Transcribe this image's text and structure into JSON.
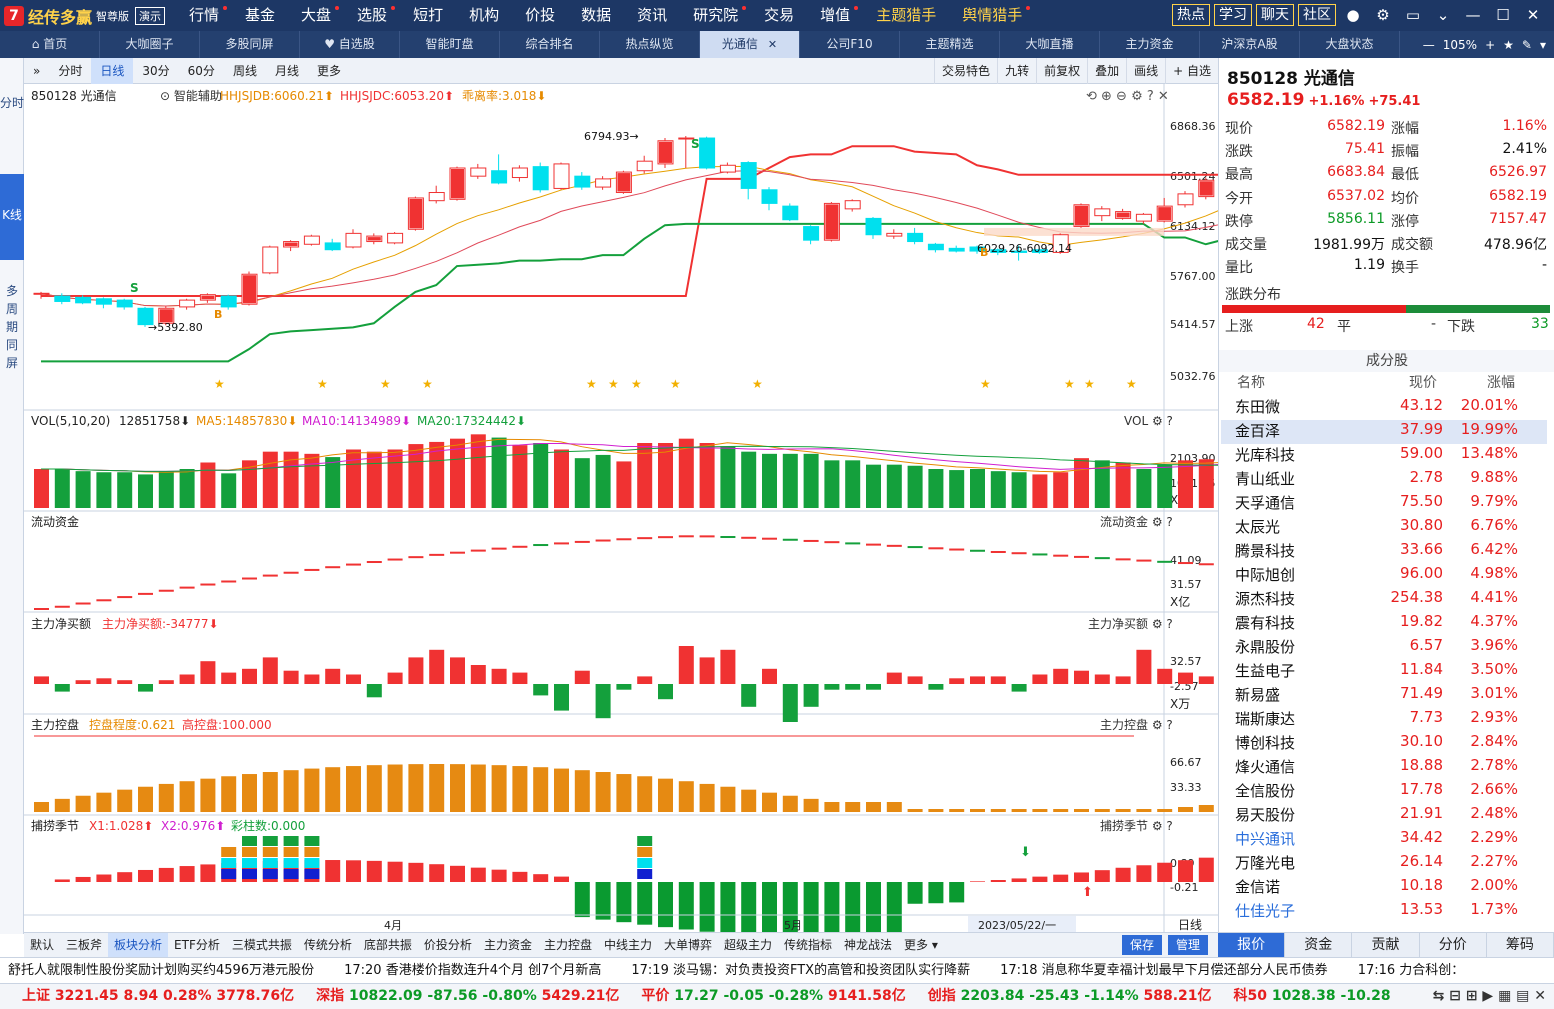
{
  "app": {
    "name": "经传多赢",
    "edition": "智尊版",
    "demo": "演示"
  },
  "main_menu": [
    {
      "label": "行情",
      "dot": true
    },
    {
      "label": "基金",
      "dot": false
    },
    {
      "label": "大盘",
      "dot": true
    },
    {
      "label": "选股",
      "dot": true
    },
    {
      "label": "短打",
      "dot": false
    },
    {
      "label": "机构",
      "dot": false
    },
    {
      "label": "价投",
      "dot": false
    },
    {
      "label": "数据",
      "dot": false
    },
    {
      "label": "资讯",
      "dot": false
    },
    {
      "label": "研究院",
      "dot": true
    },
    {
      "label": "交易",
      "dot": false
    },
    {
      "label": "增值",
      "dot": true
    },
    {
      "label": "主题猎手",
      "dot": false,
      "hot": true
    },
    {
      "label": "舆情猎手",
      "dot": true,
      "hot": true
    }
  ],
  "top_right": {
    "hot": "热点",
    "learn": "学习",
    "chat": "聊天",
    "community": "社区"
  },
  "tabs": [
    {
      "label": "首页",
      "icon": "home-icon"
    },
    {
      "label": "大咖圈子"
    },
    {
      "label": "多股同屏"
    },
    {
      "label": "自选股",
      "icon": "heart-icon"
    },
    {
      "label": "智能盯盘"
    },
    {
      "label": "综合排名"
    },
    {
      "label": "热点纵览"
    },
    {
      "label": "光通信",
      "active": true
    },
    {
      "label": "公司F10"
    },
    {
      "label": "主题精选"
    },
    {
      "label": "大咖直播"
    },
    {
      "label": "主力资金"
    },
    {
      "label": "沪深京A股"
    },
    {
      "label": "大盘状态"
    }
  ],
  "zoom": "105%",
  "left_side": [
    "分时",
    "K线",
    "多周期同屏"
  ],
  "toolbar": [
    "分时",
    "日线",
    "30分",
    "60分",
    "周线",
    "月线",
    "更多"
  ],
  "toolbar_right": [
    "交易特色",
    "九转",
    "前复权",
    "叠加",
    "画线",
    "+ 自选"
  ],
  "chart_header": {
    "code": "850128 光通信",
    "assist": "智能辅助",
    "hh1": "HHJSJDB:6060.21",
    "hh2": "HHJSJDC:6053.20",
    "dev": "乖离率:3.018"
  },
  "chart_data": {
    "type": "candlestick",
    "price_ticks": [
      "6868.36",
      "6501.24",
      "6134.12",
      "5767.00",
      "5414.57",
      "5032.76"
    ],
    "annotations": {
      "high": "6794.93",
      "low": "5392.80",
      "range": "6029.26-6092.14"
    },
    "x_labels": [
      "4月",
      "5月"
    ],
    "date_label": "2023/05/22/一",
    "period": "日线",
    "candles": [
      {
        "o": 5640,
        "c": 5640,
        "h": 5650,
        "l": 5600
      },
      {
        "o": 5620,
        "c": 5580,
        "h": 5640,
        "l": 5560
      },
      {
        "o": 5610,
        "c": 5570,
        "h": 5625,
        "l": 5560
      },
      {
        "o": 5600,
        "c": 5560,
        "h": 5610,
        "l": 5530
      },
      {
        "o": 5590,
        "c": 5540,
        "h": 5600,
        "l": 5520
      },
      {
        "o": 5530,
        "c": 5410,
        "h": 5540,
        "l": 5393
      },
      {
        "o": 5420,
        "c": 5530,
        "h": 5545,
        "l": 5405
      },
      {
        "o": 5540,
        "c": 5590,
        "h": 5600,
        "l": 5520
      },
      {
        "o": 5590,
        "c": 5630,
        "h": 5640,
        "l": 5570
      },
      {
        "o": 5620,
        "c": 5540,
        "h": 5630,
        "l": 5520
      },
      {
        "o": 5560,
        "c": 5780,
        "h": 5800,
        "l": 5550
      },
      {
        "o": 5790,
        "c": 5980,
        "h": 5990,
        "l": 5780
      },
      {
        "o": 5980,
        "c": 6020,
        "h": 6030,
        "l": 5950
      },
      {
        "o": 6000,
        "c": 6060,
        "h": 6070,
        "l": 5990
      },
      {
        "o": 6010,
        "c": 5960,
        "h": 6040,
        "l": 5950
      },
      {
        "o": 5980,
        "c": 6080,
        "h": 6110,
        "l": 5970
      },
      {
        "o": 6020,
        "c": 6060,
        "h": 6080,
        "l": 6000
      },
      {
        "o": 6010,
        "c": 6080,
        "h": 6090,
        "l": 6000
      },
      {
        "o": 6110,
        "c": 6340,
        "h": 6350,
        "l": 6100
      },
      {
        "o": 6320,
        "c": 6380,
        "h": 6430,
        "l": 6300
      },
      {
        "o": 6330,
        "c": 6560,
        "h": 6570,
        "l": 6320
      },
      {
        "o": 6500,
        "c": 6560,
        "h": 6590,
        "l": 6480
      },
      {
        "o": 6540,
        "c": 6450,
        "h": 6660,
        "l": 6440
      },
      {
        "o": 6490,
        "c": 6560,
        "h": 6580,
        "l": 6460
      },
      {
        "o": 6570,
        "c": 6400,
        "h": 6600,
        "l": 6380
      },
      {
        "o": 6410,
        "c": 6590,
        "h": 6600,
        "l": 6400
      },
      {
        "o": 6500,
        "c": 6420,
        "h": 6530,
        "l": 6400
      },
      {
        "o": 6420,
        "c": 6480,
        "h": 6500,
        "l": 6400
      },
      {
        "o": 6380,
        "c": 6530,
        "h": 6540,
        "l": 6370
      },
      {
        "o": 6540,
        "c": 6610,
        "h": 6650,
        "l": 6520
      },
      {
        "o": 6590,
        "c": 6760,
        "h": 6780,
        "l": 6560
      },
      {
        "o": 6780,
        "c": 6780,
        "h": 6795,
        "l": 6560
      },
      {
        "o": 6780,
        "c": 6560,
        "h": 6790,
        "l": 6550
      },
      {
        "o": 6530,
        "c": 6580,
        "h": 6600,
        "l": 6520
      },
      {
        "o": 6600,
        "c": 6410,
        "h": 6610,
        "l": 6330
      },
      {
        "o": 6400,
        "c": 6300,
        "h": 6420,
        "l": 6250
      },
      {
        "o": 6280,
        "c": 6180,
        "h": 6300,
        "l": 6170
      },
      {
        "o": 6130,
        "c": 6030,
        "h": 6140,
        "l": 6000
      },
      {
        "o": 6030,
        "c": 6300,
        "h": 6310,
        "l": 6020
      },
      {
        "o": 6260,
        "c": 6320,
        "h": 6330,
        "l": 6240
      },
      {
        "o": 6190,
        "c": 6070,
        "h": 6200,
        "l": 6040
      },
      {
        "o": 6060,
        "c": 6080,
        "h": 6110,
        "l": 6040
      },
      {
        "o": 6080,
        "c": 6020,
        "h": 6120,
        "l": 6000
      },
      {
        "o": 6000,
        "c": 5960,
        "h": 6010,
        "l": 5940
      },
      {
        "o": 5970,
        "c": 5950,
        "h": 5990,
        "l": 5940
      },
      {
        "o": 5980,
        "c": 5950,
        "h": 5990,
        "l": 5930
      },
      {
        "o": 5960,
        "c": 5940,
        "h": 5970,
        "l": 5920
      },
      {
        "o": 5950,
        "c": 5940,
        "h": 5990,
        "l": 5880
      },
      {
        "o": 5960,
        "c": 5940,
        "h": 5970,
        "l": 5930
      },
      {
        "o": 5940,
        "c": 6070,
        "h": 6080,
        "l": 5930
      },
      {
        "o": 6130,
        "c": 6290,
        "h": 6300,
        "l": 6120
      },
      {
        "o": 6210,
        "c": 6260,
        "h": 6280,
        "l": 6170
      },
      {
        "o": 6190,
        "c": 6240,
        "h": 6260,
        "l": 6180
      },
      {
        "o": 6170,
        "c": 6220,
        "h": 6230,
        "l": 6150
      },
      {
        "o": 6170,
        "c": 6280,
        "h": 6340,
        "l": 6160
      },
      {
        "o": 6290,
        "c": 6370,
        "h": 6390,
        "l": 6270
      },
      {
        "o": 6350,
        "c": 6470,
        "h": 6490,
        "l": 6330
      },
      {
        "o": 6560,
        "c": 6582,
        "h": 6684,
        "l": 6527
      }
    ],
    "ma_red": [
      5620,
      5620,
      5620,
      5620,
      5620,
      5620,
      5620,
      5620,
      5620,
      5620,
      5620,
      5620,
      5620,
      5620,
      5620,
      5620,
      5620,
      5620,
      5620,
      5620,
      5620,
      5620,
      5620,
      5620,
      5620,
      5620,
      5620,
      5620,
      5620,
      5620,
      5620,
      5620,
      6480,
      6480,
      6480,
      6560,
      6640,
      6660,
      6660,
      6720,
      6720,
      6720,
      6680,
      6670,
      6660,
      6580,
      6550,
      6510,
      6510,
      6510,
      6510,
      6510,
      6510,
      6510,
      6510,
      6510,
      6510,
      6510
    ],
    "ma_green": [
      5140,
      5140,
      5140,
      5140,
      5140,
      5140,
      5140,
      5140,
      5140,
      5140,
      5230,
      5340,
      5360,
      5370,
      5380,
      5390,
      5420,
      5540,
      5650,
      5700,
      5840,
      5850,
      5860,
      5880,
      5880,
      5890,
      5890,
      5920,
      5920,
      6040,
      6140,
      6150,
      6150,
      6150,
      6150,
      6150,
      6150,
      6150,
      6150,
      6150,
      6150,
      6150,
      6150,
      6150,
      6150,
      6150,
      6150,
      6150,
      6150,
      6150,
      6150,
      6150,
      6150,
      6150,
      6050,
      6050,
      6000,
      6040
    ],
    "volume": {
      "label": "VOL(5,10,20)",
      "value": "12851758",
      "ma5": "MA5:14857830",
      "ma10": "MA10:14134989",
      "ma20": "MA20:17324442",
      "ticks": [
        "2103.90",
        "1051.95"
      ],
      "unit": "X万",
      "bars": [
        1800,
        1800,
        1700,
        1650,
        1650,
        1550,
        1700,
        1800,
        2100,
        1600,
        2200,
        2600,
        2600,
        2500,
        2350,
        2700,
        2600,
        2700,
        2950,
        3050,
        3200,
        3400,
        3250,
        2900,
        3000,
        2700,
        2300,
        2450,
        2150,
        3000,
        3000,
        3200,
        3000,
        2850,
        2600,
        2500,
        2500,
        2500,
        2200,
        2200,
        2000,
        2000,
        1950,
        1800,
        1750,
        1800,
        1700,
        1650,
        1550,
        1650,
        2300,
        2200,
        2100,
        1800,
        2000,
        2200,
        2250,
        2300
      ],
      "up": [
        1,
        0,
        0,
        0,
        0,
        0,
        0,
        0,
        1,
        0,
        1,
        1,
        1,
        1,
        0,
        1,
        1,
        1,
        1,
        1,
        1,
        1,
        0,
        1,
        0,
        1,
        0,
        0,
        1,
        1,
        1,
        1,
        1,
        0,
        0,
        0,
        0,
        0,
        0,
        0,
        0,
        0,
        0,
        0,
        0,
        0,
        0,
        0,
        1,
        1,
        1,
        0,
        1,
        0,
        0,
        1,
        1,
        1
      ]
    },
    "liquidity": {
      "label": "流动资金",
      "ticks": [
        "41.09",
        "31.57"
      ],
      "unit": "X亿"
    },
    "net_buy": {
      "label": "主力净买额",
      "value": "主力净买额:-34777",
      "ticks": [
        "32.57",
        "-2.57"
      ],
      "unit": "X万"
    },
    "control": {
      "label": "主力控盘",
      "degree": "控盘程度:0.621",
      "high": "高控盘:100.000",
      "ticks": [
        "66.67",
        "33.33"
      ]
    },
    "season": {
      "label": "捕捞季节",
      "x1": "X1:1.028",
      "x2": "X2:0.976",
      "bars": "彩柱数:0.000",
      "ticks": [
        "0.89",
        "-0.21"
      ]
    }
  },
  "quote": {
    "title": "850128 光通信",
    "price": "6582.19",
    "chg_pct": "+1.16%",
    "chg": "+75.41",
    "rows": [
      [
        "现价",
        "6582.19",
        "涨幅",
        "1.16%"
      ],
      [
        "涨跌",
        "75.41",
        "振幅",
        "2.41%"
      ],
      [
        "最高",
        "6683.84",
        "最低",
        "6526.97"
      ],
      [
        "今开",
        "6537.02",
        "均价",
        "6582.19"
      ],
      [
        "跌停",
        "5856.11",
        "涨停",
        "7157.47"
      ],
      [
        "成交量",
        "1981.99万",
        "成交额",
        "478.96亿"
      ],
      [
        "量比",
        "1.19",
        "换手",
        "-"
      ]
    ],
    "dist_label": "涨跌分布",
    "up_label": "上涨",
    "up": "42",
    "flat_label": "平",
    "flat": "-",
    "down_label": "下跌",
    "down": "33"
  },
  "components": {
    "title": "成分股",
    "headers": [
      "名称",
      "现价",
      "涨幅"
    ],
    "rows": [
      [
        "东田微",
        "43.12",
        "20.01%"
      ],
      [
        "金百泽",
        "37.99",
        "19.99%"
      ],
      [
        "光库科技",
        "59.00",
        "13.48%"
      ],
      [
        "青山纸业",
        "2.78",
        "9.88%"
      ],
      [
        "天孚通信",
        "75.50",
        "9.79%"
      ],
      [
        "太辰光",
        "30.80",
        "6.76%"
      ],
      [
        "腾景科技",
        "33.66",
        "6.42%"
      ],
      [
        "中际旭创",
        "96.00",
        "4.98%"
      ],
      [
        "源杰科技",
        "254.38",
        "4.41%"
      ],
      [
        "震有科技",
        "19.82",
        "4.37%"
      ],
      [
        "永鼎股份",
        "6.57",
        "3.96%"
      ],
      [
        "生益电子",
        "11.84",
        "3.50%"
      ],
      [
        "新易盛",
        "71.49",
        "3.01%"
      ],
      [
        "瑞斯康达",
        "7.73",
        "2.93%"
      ],
      [
        "博创科技",
        "30.10",
        "2.84%"
      ],
      [
        "烽火通信",
        "18.88",
        "2.78%"
      ],
      [
        "全信股份",
        "17.78",
        "2.66%"
      ],
      [
        "易天股份",
        "21.91",
        "2.48%"
      ],
      [
        "中兴通讯",
        "34.42",
        "2.29%"
      ],
      [
        "万隆光电",
        "26.14",
        "2.27%"
      ],
      [
        "金信诺",
        "10.18",
        "2.00%"
      ],
      [
        "仕佳光子",
        "13.53",
        "1.73%"
      ]
    ]
  },
  "rp_tabs": [
    "报价",
    "资金",
    "贡献",
    "分价",
    "筹码"
  ],
  "bottom_tabs": [
    "默认",
    "三板斧",
    "板块分析",
    "ETF分析",
    "三模式共振",
    "传统分析",
    "底部共振",
    "价投分析",
    "主力资金",
    "主力控盘",
    "中线主力",
    "大单博弈",
    "超级主力",
    "传统指标",
    "神龙战法",
    "更多"
  ],
  "bottom_right": [
    "保存",
    "管理"
  ],
  "news": [
    "舒托人就限制性股份奖励计划购买约4596万港元股份",
    "17:20 香港楼价指数连升4个月 创7个月新高",
    "17:19 淡马锡：对负责投资FTX的高管和投资团队实行降薪",
    "17:18 消息称华夏幸福计划最早下月偿还部分人民币债券",
    "17:16 力合科创："
  ],
  "indices": [
    {
      "name": "上证",
      "value": "3221.45",
      "chg": "8.94",
      "pct": "0.28%",
      "amt": "3778.76亿",
      "up": true
    },
    {
      "name": "深指",
      "value": "10822.09",
      "chg": "-87.56",
      "pct": "-0.80%",
      "amt": "5429.21亿",
      "up": false
    },
    {
      "name": "平价",
      "value": "17.27",
      "chg": "-0.05",
      "pct": "-0.28%",
      "amt": "9141.58亿",
      "up": false
    },
    {
      "name": "创指",
      "value": "2203.84",
      "chg": "-25.43",
      "pct": "-1.14%",
      "amt": "588.21亿",
      "up": false
    },
    {
      "name": "科50",
      "value": "1028.38",
      "chg": "-10.28",
      "pct": "",
      "amt": "",
      "up": false
    }
  ]
}
